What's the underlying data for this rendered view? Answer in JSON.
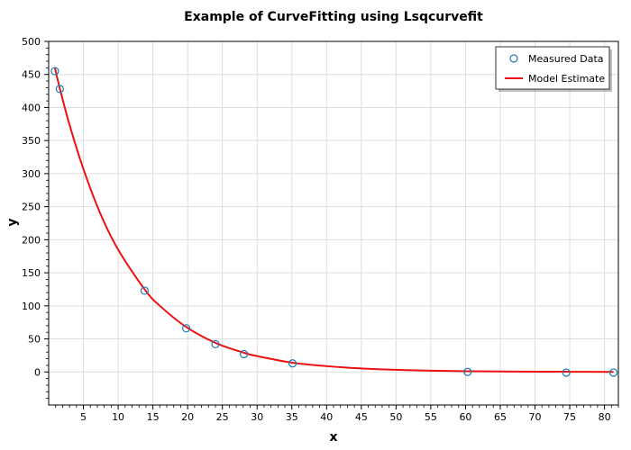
{
  "chart_data": {
    "type": "scatter",
    "title": "Example of CurveFitting using Lsqcurvefit",
    "xlabel": "x",
    "ylabel": "y",
    "xlim": [
      0,
      82
    ],
    "ylim": [
      -50,
      500
    ],
    "xticks": [
      5,
      10,
      15,
      20,
      25,
      30,
      35,
      40,
      45,
      50,
      55,
      60,
      65,
      70,
      75,
      80
    ],
    "yticks": [
      0,
      50,
      100,
      150,
      200,
      250,
      300,
      350,
      400,
      450,
      500
    ],
    "grid": true,
    "legend": "top-right",
    "series": [
      {
        "name": "Measured Data",
        "kind": "markers",
        "color": "#1f77b4",
        "x": [
          0.9,
          1.6,
          13.8,
          19.8,
          24.0,
          28.1,
          35.1,
          60.3,
          74.5,
          81.3
        ],
        "y": [
          455,
          428,
          123,
          66,
          42,
          27,
          13,
          0,
          -1,
          -1
        ]
      },
      {
        "name": "Model Estimate",
        "kind": "line",
        "color": "#ee1111",
        "x": [
          0.9,
          1.6,
          3,
          5,
          7.5,
          10,
          13.8,
          16,
          19.8,
          24,
          28.1,
          30,
          35.1,
          40,
          45,
          50,
          55,
          60.3,
          65,
          70,
          74.5,
          81.3
        ],
        "y": [
          460,
          429,
          374,
          307,
          238,
          185,
          125,
          100,
          68,
          44,
          29,
          24,
          14,
          8.8,
          5.3,
          3.2,
          1.9,
          1.1,
          0.7,
          0.4,
          0.3,
          0.1
        ]
      }
    ]
  }
}
